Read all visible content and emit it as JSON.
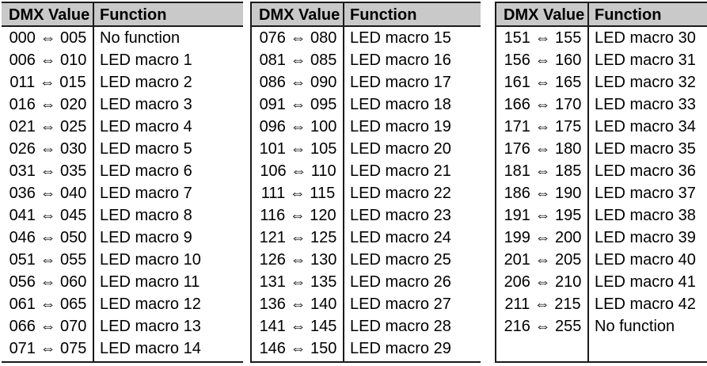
{
  "colors": {
    "header_bg": "#c9c9c9",
    "border": "#1a1a1a",
    "text": "#000000",
    "page_bg": "#ffffff"
  },
  "table": {
    "columns": [
      "DMX Value",
      "Function"
    ],
    "groups": [
      {
        "rows": [
          {
            "range": "000 ⇔ 005",
            "function": "No function"
          },
          {
            "range": "006 ⇔ 010",
            "function": "LED macro 1"
          },
          {
            "range": "011 ⇔ 015",
            "function": "LED macro 2"
          },
          {
            "range": "016 ⇔ 020",
            "function": "LED macro 3"
          },
          {
            "range": "021 ⇔ 025",
            "function": "LED macro 4"
          },
          {
            "range": "026 ⇔ 030",
            "function": "LED macro 5"
          },
          {
            "range": "031 ⇔ 035",
            "function": "LED macro 6"
          },
          {
            "range": "036 ⇔ 040",
            "function": "LED macro 7"
          },
          {
            "range": "041 ⇔ 045",
            "function": "LED macro 8"
          },
          {
            "range": "046 ⇔ 050",
            "function": "LED macro 9"
          },
          {
            "range": "051 ⇔ 055",
            "function": "LED macro 10"
          },
          {
            "range": "056 ⇔ 060",
            "function": "LED macro 11"
          },
          {
            "range": "061 ⇔ 065",
            "function": "LED macro 12"
          },
          {
            "range": "066 ⇔ 070",
            "function": "LED macro 13"
          },
          {
            "range": "071 ⇔ 075",
            "function": "LED macro 14"
          }
        ]
      },
      {
        "rows": [
          {
            "range": "076 ⇔ 080",
            "function": "LED macro 15"
          },
          {
            "range": "081 ⇔ 085",
            "function": "LED macro 16"
          },
          {
            "range": "086 ⇔ 090",
            "function": "LED macro 17"
          },
          {
            "range": "091 ⇔ 095",
            "function": "LED macro 18"
          },
          {
            "range": "096 ⇔ 100",
            "function": "LED macro 19"
          },
          {
            "range": "101 ⇔ 105",
            "function": "LED macro 20"
          },
          {
            "range": "106 ⇔ 110",
            "function": "LED macro 21"
          },
          {
            "range": "111 ⇔ 115",
            "function": "LED macro 22"
          },
          {
            "range": "116 ⇔ 120",
            "function": "LED macro 23"
          },
          {
            "range": "121 ⇔ 125",
            "function": "LED macro 24"
          },
          {
            "range": "126 ⇔ 130",
            "function": "LED macro 25"
          },
          {
            "range": "131 ⇔ 135",
            "function": "LED macro 26"
          },
          {
            "range": "136 ⇔ 140",
            "function": "LED macro 27"
          },
          {
            "range": "141 ⇔ 145",
            "function": "LED macro 28"
          },
          {
            "range": "146 ⇔ 150",
            "function": "LED macro 29"
          }
        ]
      },
      {
        "rows": [
          {
            "range": "151 ⇔ 155",
            "function": "LED macro 30"
          },
          {
            "range": "156 ⇔ 160",
            "function": "LED macro 31"
          },
          {
            "range": "161 ⇔ 165",
            "function": "LED macro 32"
          },
          {
            "range": "166 ⇔ 170",
            "function": "LED macro 33"
          },
          {
            "range": "171 ⇔ 175",
            "function": "LED macro 34"
          },
          {
            "range": "176 ⇔ 180",
            "function": "LED macro 35"
          },
          {
            "range": "181 ⇔ 185",
            "function": "LED macro 36"
          },
          {
            "range": "186 ⇔ 190",
            "function": "LED macro 37"
          },
          {
            "range": "191 ⇔ 195",
            "function": "LED macro 38"
          },
          {
            "range": "199 ⇔ 200",
            "function": "LED macro 39"
          },
          {
            "range": "201 ⇔ 205",
            "function": "LED macro 40"
          },
          {
            "range": "206 ⇔ 210",
            "function": "LED macro 41"
          },
          {
            "range": "211 ⇔ 215",
            "function": "LED macro 42"
          },
          {
            "range": "216 ⇔ 255",
            "function": "No function"
          }
        ]
      }
    ]
  }
}
